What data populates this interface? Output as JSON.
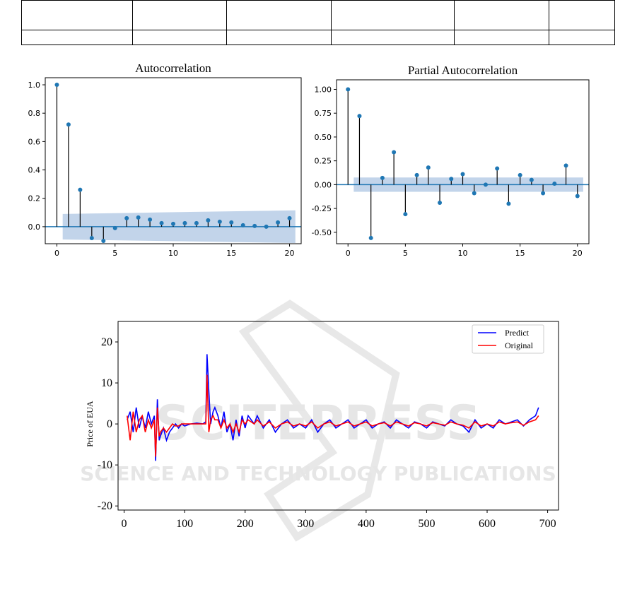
{
  "table": {
    "rows": 2,
    "columns": 6
  },
  "watermark": {
    "line1": "SCITEPRESS",
    "line2": "SCIENCE AND TECHNOLOGY PUBLICATIONS"
  },
  "colors": {
    "stem": "#1f77b4",
    "stemline": "#000000",
    "band": "#b7cde6",
    "predict": "#0000ff",
    "original": "#ff0000"
  },
  "chart_data": [
    {
      "type": "scatter",
      "title": "Autocorrelation",
      "xlim": [
        -1,
        21
      ],
      "ylim": [
        -0.12,
        1.05
      ],
      "xticks": [
        0,
        5,
        10,
        15,
        20
      ],
      "yticks": [
        1.0,
        0.8,
        0.6,
        0.4,
        0.2,
        0.0
      ],
      "ytick_labels": [
        "1.0",
        "0.8",
        "0.6",
        "0.4",
        "0.2",
        "0.0"
      ],
      "lags": [
        0,
        1,
        2,
        3,
        4,
        5,
        6,
        7,
        8,
        9,
        10,
        11,
        12,
        13,
        14,
        15,
        16,
        17,
        18,
        19,
        20
      ],
      "values": [
        1.0,
        0.72,
        0.26,
        -0.08,
        -0.1,
        -0.01,
        0.06,
        0.065,
        0.05,
        0.025,
        0.02,
        0.025,
        0.025,
        0.045,
        0.035,
        0.03,
        0.01,
        0.005,
        0.0,
        0.03,
        0.06
      ],
      "confidence_band": {
        "start_lag": 0.5,
        "end_lag": 20.5,
        "upper_start": 0.09,
        "upper_end": 0.115,
        "lower_start": -0.09,
        "lower_end": -0.115
      }
    },
    {
      "type": "scatter",
      "title": "Partial Autocorrelation",
      "xlim": [
        -1,
        21
      ],
      "ylim": [
        -0.62,
        1.1
      ],
      "xticks": [
        0,
        5,
        10,
        15,
        20
      ],
      "yticks": [
        1.0,
        0.75,
        0.5,
        0.25,
        0.0,
        -0.25,
        -0.5
      ],
      "ytick_labels": [
        "1.00",
        "0.75",
        "0.50",
        "0.25",
        "0.00",
        "-0.25",
        "-0.50"
      ],
      "lags": [
        0,
        1,
        2,
        3,
        4,
        5,
        6,
        7,
        8,
        9,
        10,
        11,
        12,
        13,
        14,
        15,
        16,
        17,
        18,
        19,
        20
      ],
      "values": [
        1.0,
        0.72,
        -0.56,
        0.07,
        0.34,
        -0.31,
        0.1,
        0.18,
        -0.19,
        0.06,
        0.11,
        -0.09,
        0.0,
        0.17,
        -0.2,
        0.1,
        0.05,
        -0.09,
        0.01,
        0.2,
        -0.12
      ],
      "confidence_band": {
        "start_lag": 0.5,
        "end_lag": 20.5,
        "upper": 0.075,
        "lower": -0.075
      }
    },
    {
      "type": "line",
      "ylabel": "Price of EUA",
      "xlim": [
        -10,
        718
      ],
      "ylim": [
        -21,
        25
      ],
      "xticks": [
        0,
        100,
        200,
        300,
        400,
        500,
        600,
        700
      ],
      "yticks": [
        20,
        10,
        0,
        -10,
        -20
      ],
      "legend": "top-right",
      "series": [
        {
          "name": "Predict",
          "color": "#0000ff",
          "x": [
            5,
            10,
            15,
            20,
            25,
            30,
            35,
            40,
            45,
            50,
            52,
            55,
            58,
            60,
            65,
            70,
            75,
            80,
            85,
            90,
            95,
            100,
            110,
            120,
            130,
            135,
            137,
            140,
            143,
            147,
            150,
            155,
            160,
            165,
            170,
            175,
            180,
            185,
            190,
            195,
            200,
            205,
            210,
            215,
            220,
            230,
            240,
            250,
            260,
            270,
            280,
            290,
            300,
            310,
            320,
            330,
            340,
            350,
            360,
            370,
            380,
            390,
            400,
            410,
            420,
            430,
            440,
            450,
            460,
            470,
            480,
            490,
            500,
            510,
            520,
            530,
            540,
            550,
            560,
            570,
            580,
            590,
            600,
            610,
            620,
            630,
            640,
            650,
            660,
            670,
            680,
            685
          ],
          "values": [
            1,
            3,
            -2,
            4,
            -1,
            2,
            -1,
            3,
            0,
            2,
            -9,
            6,
            -4,
            -3,
            -1,
            -4,
            -2,
            -1,
            0,
            -1,
            0,
            -0.5,
            0,
            0.2,
            0,
            0.5,
            17,
            8,
            0,
            3,
            4,
            2,
            -1,
            3,
            -2,
            0,
            -4,
            1,
            -3,
            2,
            -1,
            2,
            1,
            0,
            2,
            -1,
            1,
            -2,
            0,
            1,
            -1,
            0,
            -1,
            1,
            -2,
            0,
            1,
            -1,
            0,
            1,
            -1,
            0,
            1,
            -1,
            0,
            0.5,
            -1,
            1,
            0,
            -1,
            0.5,
            0,
            -1,
            0.5,
            0,
            -0.5,
            1,
            0,
            -0.5,
            -2,
            1,
            -1,
            0,
            -1,
            1,
            0,
            0.5,
            1,
            -0.5,
            1,
            2,
            4
          ]
        },
        {
          "name": "Original",
          "color": "#ff0000",
          "x": [
            5,
            10,
            15,
            20,
            25,
            30,
            35,
            40,
            45,
            50,
            52,
            55,
            58,
            60,
            65,
            70,
            75,
            80,
            85,
            90,
            95,
            100,
            110,
            120,
            130,
            135,
            137,
            140,
            143,
            147,
            150,
            155,
            160,
            165,
            170,
            175,
            180,
            185,
            190,
            195,
            200,
            205,
            210,
            215,
            220,
            230,
            240,
            250,
            260,
            270,
            280,
            290,
            300,
            310,
            320,
            330,
            340,
            350,
            360,
            370,
            380,
            390,
            400,
            410,
            420,
            430,
            440,
            450,
            460,
            470,
            480,
            490,
            500,
            510,
            520,
            530,
            540,
            550,
            560,
            570,
            580,
            590,
            600,
            610,
            620,
            630,
            640,
            650,
            660,
            670,
            680,
            685
          ],
          "values": [
            2,
            -4,
            3,
            -2,
            1,
            2,
            -2,
            1,
            -1,
            1,
            -8,
            4,
            -3,
            -2,
            -1,
            -2,
            -1,
            0,
            -0.5,
            -0.5,
            0,
            0,
            0,
            0,
            0,
            0,
            12,
            -2,
            1,
            2,
            1,
            1,
            -1,
            1,
            -1,
            0,
            -2,
            0,
            -2,
            1,
            0,
            1,
            0.5,
            0,
            1,
            -0.5,
            0.5,
            -1,
            0,
            0.5,
            -0.5,
            0,
            -0.5,
            0.5,
            -1,
            0,
            0.5,
            -0.5,
            0,
            0.5,
            -0.5,
            0,
            0.5,
            -0.5,
            0,
            0.3,
            -0.5,
            0.5,
            0,
            -0.5,
            0.3,
            0,
            -0.5,
            0.3,
            0,
            -0.3,
            0.5,
            0,
            -0.3,
            -1,
            0.5,
            -0.5,
            0,
            -0.5,
            0.5,
            0,
            0.3,
            0.5,
            -0.3,
            0.5,
            1,
            2
          ]
        }
      ]
    }
  ]
}
